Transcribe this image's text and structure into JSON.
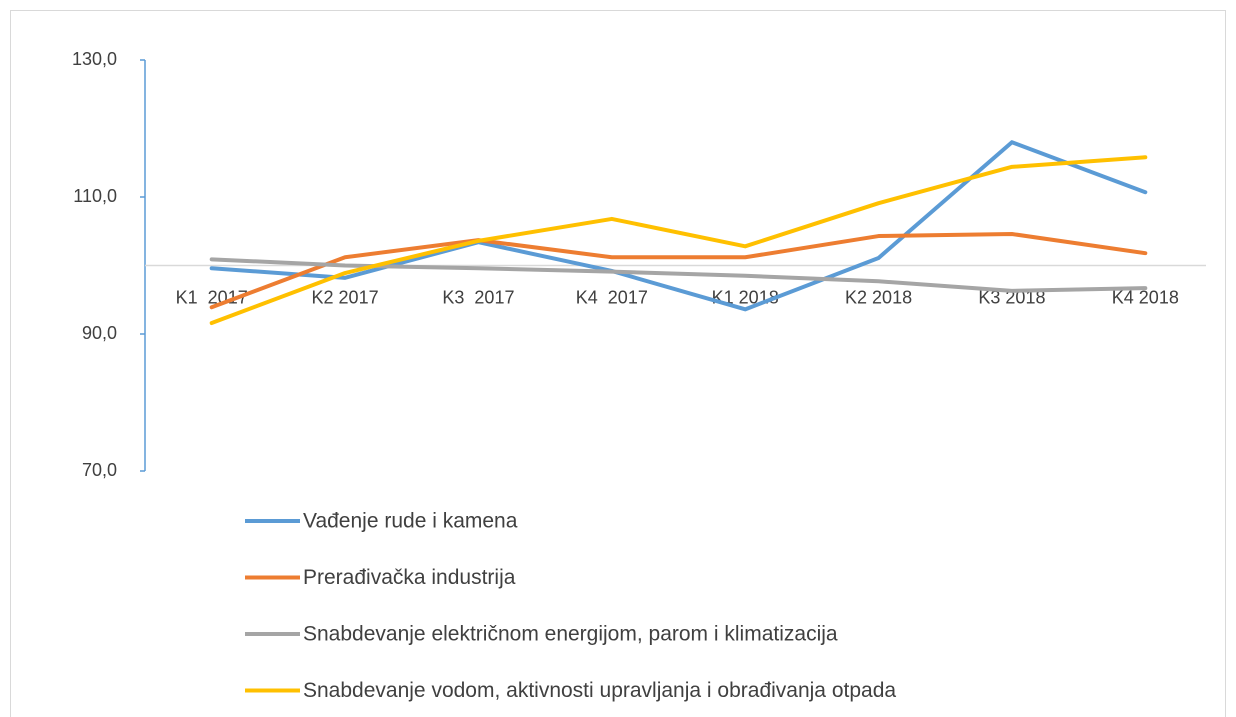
{
  "chart_data": {
    "type": "line",
    "categories": [
      "K1  2017",
      "K2 2017",
      "K3  2017",
      "K4  2017",
      "K1 2018",
      "K2 2018",
      "K3 2018",
      "K4 2018"
    ],
    "series": [
      {
        "name": "Vađenje rude i kamena",
        "color": "#5b9bd5",
        "values": [
          99.6,
          98.2,
          103.4,
          99.2,
          93.6,
          101.1,
          118.0,
          110.7
        ]
      },
      {
        "name": "Prerađivačka industrija",
        "color": "#ed7d31",
        "values": [
          93.9,
          101.2,
          103.7,
          101.2,
          101.2,
          104.3,
          104.6,
          101.8
        ]
      },
      {
        "name": "Snabdevanje električnom energijom, parom i klimatizacija",
        "color": "#a5a5a5",
        "values": [
          100.9,
          100.0,
          99.6,
          99.1,
          98.5,
          97.7,
          96.3,
          96.7
        ]
      },
      {
        "name": "Snabdevanje vodom, aktivnosti upravljanja i obrađivanja otpada",
        "color": "#ffc000",
        "values": [
          91.6,
          98.9,
          103.6,
          106.8,
          102.8,
          109.1,
          114.4,
          115.8
        ]
      }
    ],
    "ylim": [
      70,
      130
    ],
    "yticks": [
      {
        "value": 70,
        "label": "70,0"
      },
      {
        "value": 90,
        "label": "90,0"
      },
      {
        "value": 110,
        "label": "110,0"
      },
      {
        "value": 130,
        "label": "130,0"
      }
    ],
    "x_axis_crosses": 100,
    "grid": false,
    "legend": "bottom"
  }
}
